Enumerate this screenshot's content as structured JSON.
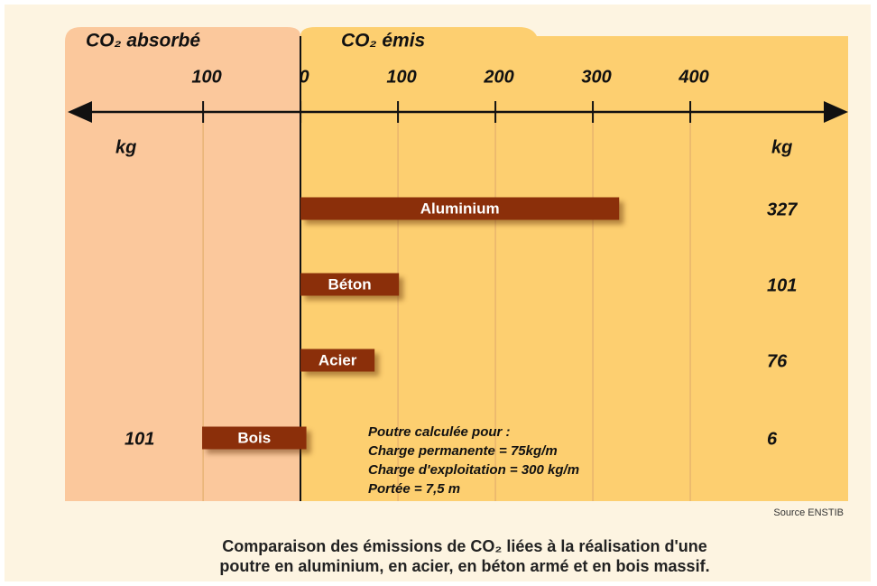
{
  "chart_data": {
    "type": "bar",
    "orientation": "horizontal",
    "categories": [
      "Aluminium",
      "Béton",
      "Acier",
      "Bois"
    ],
    "series": [
      {
        "name": "CO₂ absorbé",
        "color": "#8b2f0a",
        "background": "#fbc89c",
        "values": [
          null,
          null,
          null,
          101
        ]
      },
      {
        "name": "CO₂ émis",
        "color": "#8b2f0a",
        "background": "#fdcf70",
        "values": [
          327,
          101,
          76,
          6
        ]
      }
    ],
    "xlim": [
      -239,
      562
    ],
    "xticks": [
      {
        "value": -100,
        "label": "100"
      },
      0,
      100,
      200,
      300,
      400
    ],
    "absorbed_unit": "kg",
    "emitted_unit": "kg",
    "grid": true,
    "annotation": [
      "Poutre calculée pour :",
      "Charge permanente = 75kg/m",
      "Charge d'exploitation = 300 kg/m",
      "Portée = 7,5 m"
    ],
    "source": "Source ENSTIB",
    "caption": [
      "Comparaison des émissions de CO₂ liées à la réalisation d'une",
      "poutre en aluminium, en acier, en béton armé et en bois massif."
    ]
  }
}
